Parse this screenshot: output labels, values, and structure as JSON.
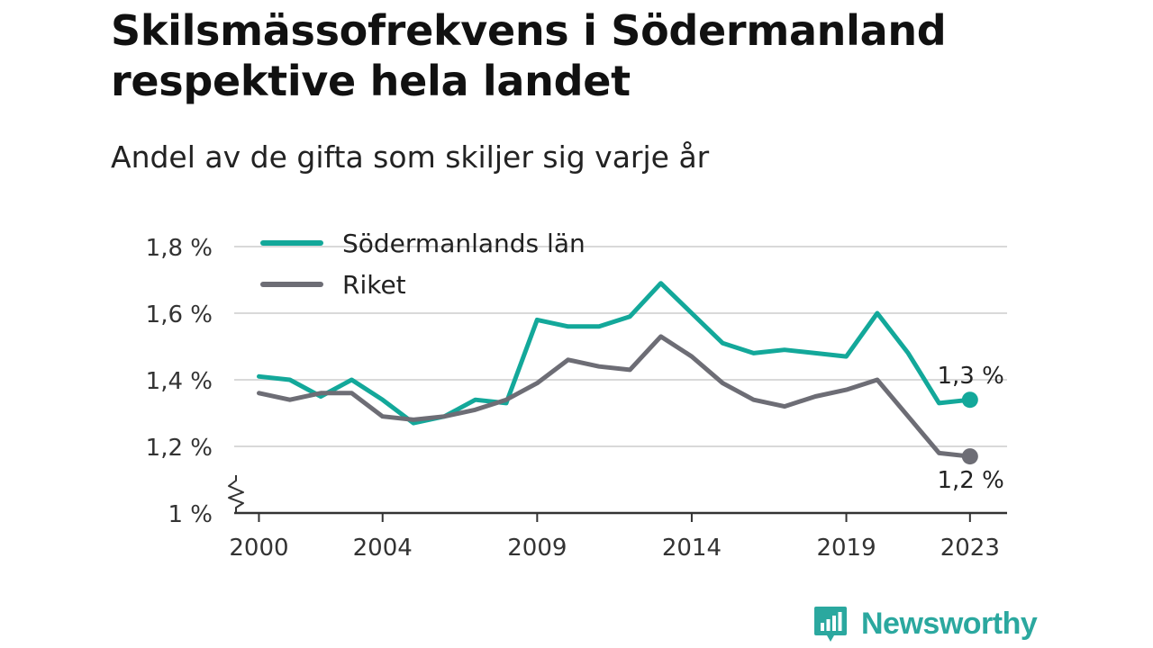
{
  "header": {
    "title": "Skilsmässofrekvens i Södermanland respektive hela landet",
    "subtitle": "Andel av de gifta som skiljer sig varje år"
  },
  "brand": {
    "name": "Newsworthy"
  },
  "colors": {
    "sodermanland": "#13a89a",
    "riket": "#6d6d75",
    "grid": "#d9d9d9",
    "axis": "#333333"
  },
  "chart_data": {
    "type": "line",
    "title": "Skilsmässofrekvens i Södermanland respektive hela landet",
    "subtitle": "Andel av de gifta som skiljer sig varje år",
    "xlabel": "",
    "ylabel": "",
    "ylim": [
      1.0,
      1.8
    ],
    "yticks": [
      1.0,
      1.2,
      1.4,
      1.6,
      1.8
    ],
    "ytick_labels": [
      "1 %",
      "1,2 %",
      "1,4 %",
      "1,6 %",
      "1,8 %"
    ],
    "xticks": [
      2000,
      2004,
      2009,
      2014,
      2019,
      2023
    ],
    "xtick_labels": [
      "2000",
      "2004",
      "2009",
      "2014",
      "2019",
      "2023"
    ],
    "grid": true,
    "y_axis_break": true,
    "legend_position": "top-left",
    "x": [
      2000,
      2001,
      2002,
      2003,
      2004,
      2005,
      2006,
      2007,
      2008,
      2009,
      2010,
      2011,
      2012,
      2013,
      2014,
      2015,
      2016,
      2017,
      2018,
      2019,
      2020,
      2021,
      2022,
      2023
    ],
    "series": [
      {
        "name": "Södermanlands län",
        "color": "#13a89a",
        "values": [
          1.41,
          1.4,
          1.35,
          1.4,
          1.34,
          1.27,
          1.29,
          1.34,
          1.33,
          1.58,
          1.56,
          1.56,
          1.59,
          1.69,
          1.6,
          1.51,
          1.48,
          1.49,
          1.48,
          1.47,
          1.6,
          1.48,
          1.33,
          1.34
        ],
        "end_label": "1,3 %"
      },
      {
        "name": "Riket",
        "color": "#6d6d75",
        "values": [
          1.36,
          1.34,
          1.36,
          1.36,
          1.29,
          1.28,
          1.29,
          1.31,
          1.34,
          1.39,
          1.46,
          1.44,
          1.43,
          1.53,
          1.47,
          1.39,
          1.34,
          1.32,
          1.35,
          1.37,
          1.4,
          1.29,
          1.18,
          1.17
        ],
        "end_label": "1,2 %"
      }
    ]
  }
}
